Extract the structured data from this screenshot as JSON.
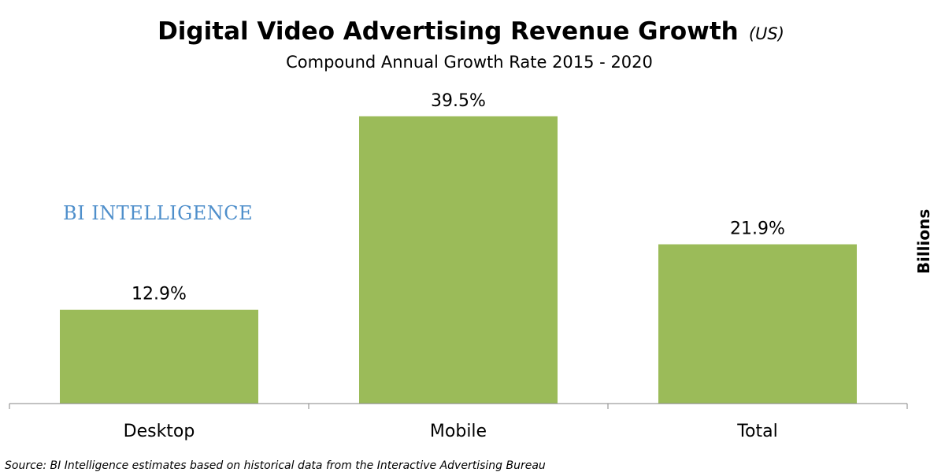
{
  "chart_data": {
    "type": "bar",
    "title": "Digital Video Advertising Revenue Growth",
    "title_suffix": "(US)",
    "subtitle": "Compound Annual Growth Rate 2015 - 2020",
    "categories": [
      "Desktop",
      "Mobile",
      "Total"
    ],
    "values": [
      12.9,
      39.5,
      21.9
    ],
    "data_labels": [
      "12.9%",
      "39.5%",
      "21.9%"
    ],
    "ylabel": "Billions",
    "xlabel": "",
    "ylim": [
      0,
      45
    ],
    "grid": false,
    "bar_color": "#9BBB59"
  },
  "watermark": {
    "text": "BI INTELLIGENCE",
    "color": "#4F8FCB"
  },
  "source": "Source: BI Intelligence estimates based on historical data from the Interactive Advertising Bureau"
}
